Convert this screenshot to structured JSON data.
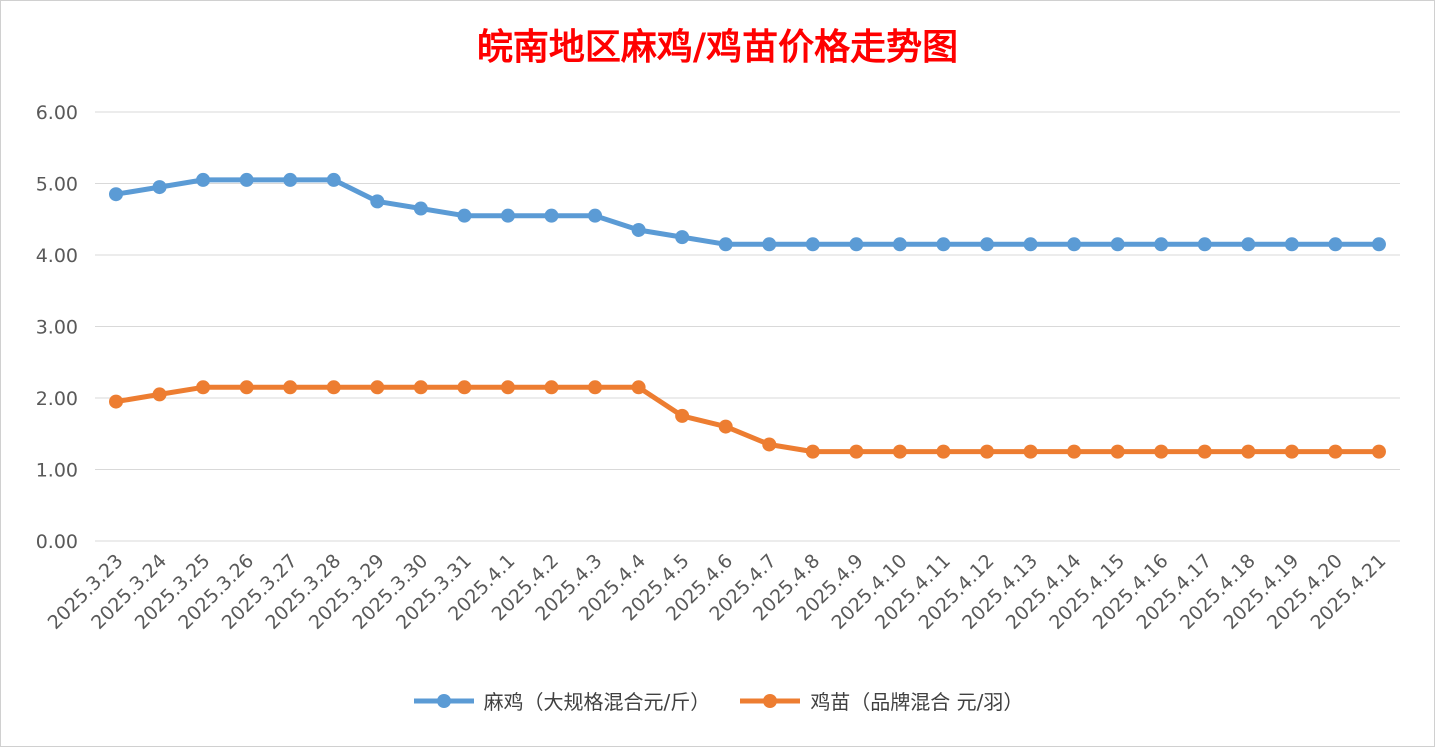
{
  "chart_data": {
    "type": "line",
    "title": "皖南地区麻鸡/鸡苗价格走势图",
    "categories": [
      "2025.3.23",
      "2025.3.24",
      "2025.3.25",
      "2025.3.26",
      "2025.3.27",
      "2025.3.28",
      "2025.3.29",
      "2025.3.30",
      "2025.3.31",
      "2025.4.1",
      "2025.4.2",
      "2025.4.3",
      "2025.4.4",
      "2025.4.5",
      "2025.4.6",
      "2025.4.7",
      "2025.4.8",
      "2025.4.9",
      "2025.4.10",
      "2025.4.11",
      "2025.4.12",
      "2025.4.13",
      "2025.4.14",
      "2025.4.15",
      "2025.4.16",
      "2025.4.17",
      "2025.4.18",
      "2025.4.19",
      "2025.4.20",
      "2025.4.21"
    ],
    "series": [
      {
        "name": "麻鸡（大规格混合元/斤）",
        "color": "#5b9bd5",
        "values": [
          4.85,
          4.95,
          5.05,
          5.05,
          5.05,
          5.05,
          4.75,
          4.65,
          4.55,
          4.55,
          4.55,
          4.55,
          4.35,
          4.25,
          4.15,
          4.15,
          4.15,
          4.15,
          4.15,
          4.15,
          4.15,
          4.15,
          4.15,
          4.15,
          4.15,
          4.15,
          4.15,
          4.15,
          4.15,
          4.15
        ]
      },
      {
        "name": "鸡苗（品牌混合 元/羽）",
        "color": "#ed7d31",
        "values": [
          1.95,
          2.05,
          2.15,
          2.15,
          2.15,
          2.15,
          2.15,
          2.15,
          2.15,
          2.15,
          2.15,
          2.15,
          2.15,
          1.75,
          1.6,
          1.35,
          1.25,
          1.25,
          1.25,
          1.25,
          1.25,
          1.25,
          1.25,
          1.25,
          1.25,
          1.25,
          1.25,
          1.25,
          1.25,
          1.25
        ]
      }
    ],
    "y_ticks": [
      "0.00",
      "1.00",
      "2.00",
      "3.00",
      "4.00",
      "5.00",
      "6.00"
    ],
    "ylim": [
      0,
      6
    ],
    "grid": true,
    "legend_position": "bottom"
  }
}
